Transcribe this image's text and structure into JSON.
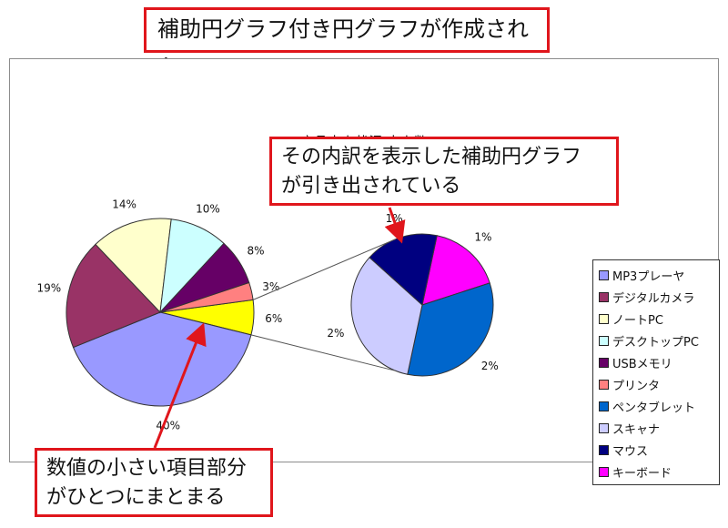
{
  "callouts": {
    "top": "補助円グラフ付き円グラフが作成された",
    "right_line1": "その内訳を表示した補助円グラフ",
    "right_line2": "が引き出されている",
    "bottom_line1": "数値の小さい項目部分",
    "bottom_line2": "がひとつにまとまる"
  },
  "chart_data": {
    "type": "pie",
    "subtype": "pie-of-pie",
    "title": "商品売上状況 売上数",
    "legend_position": "right",
    "main_pie": [
      {
        "label": "MP3プレーヤ",
        "value": 40,
        "value_label": "40%",
        "color": "#9999ff"
      },
      {
        "label": "デジタルカメラ",
        "value": 19,
        "value_label": "19%",
        "color": "#993366"
      },
      {
        "label": "ノートPC",
        "value": 14,
        "value_label": "14%",
        "color": "#ffffcc"
      },
      {
        "label": "デスクトップPC",
        "value": 10,
        "value_label": "10%",
        "color": "#ccffff"
      },
      {
        "label": "USBメモリ",
        "value": 8,
        "value_label": "8%",
        "color": "#660066"
      },
      {
        "label": "プリンタ",
        "value": 3,
        "value_label": "3%",
        "color": "#ff8080"
      },
      {
        "label": "",
        "value": 6,
        "value_label": "6%",
        "color": "#ffff00"
      }
    ],
    "secondary_pie": [
      {
        "label": "ペンタブレット",
        "value": 2,
        "value_label": "2%",
        "color": "#0066cc"
      },
      {
        "label": "スキャナ",
        "value": 2,
        "value_label": "2%",
        "color": "#ccccff"
      },
      {
        "label": "マウス",
        "value": 1,
        "value_label": "1%",
        "color": "#000080"
      },
      {
        "label": "キーボード",
        "value": 1,
        "value_label": "1%",
        "color": "#ff00ff"
      }
    ],
    "legend": [
      {
        "label": "MP3プレーヤ",
        "color": "#9999ff"
      },
      {
        "label": "デジタルカメラ",
        "color": "#993366"
      },
      {
        "label": "ノートPC",
        "color": "#ffffcc"
      },
      {
        "label": "デスクトップPC",
        "color": "#ccffff"
      },
      {
        "label": "USBメモリ",
        "color": "#660066"
      },
      {
        "label": "プリンタ",
        "color": "#ff8080"
      },
      {
        "label": "ペンタブレット",
        "color": "#0066cc"
      },
      {
        "label": "スキャナ",
        "color": "#ccccff"
      },
      {
        "label": "マウス",
        "color": "#000080"
      },
      {
        "label": "キーボード",
        "color": "#ff00ff"
      }
    ]
  },
  "colors": {
    "callout_border": "#e0161c",
    "arrow": "#e0161c"
  }
}
